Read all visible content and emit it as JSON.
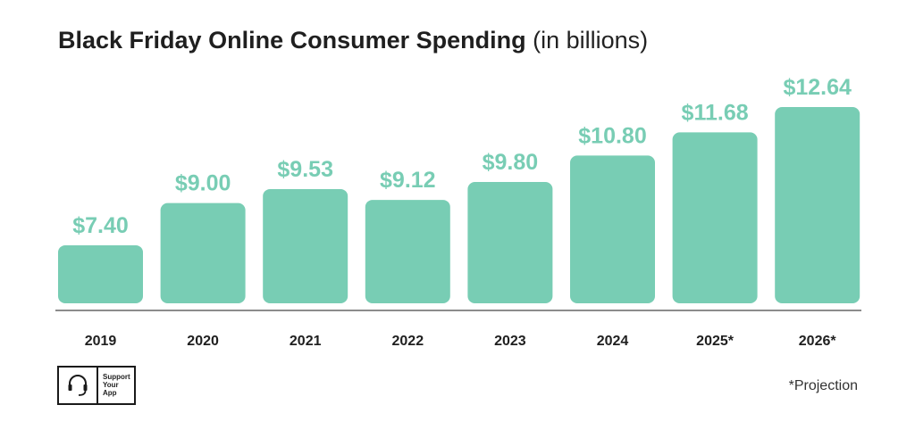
{
  "title": {
    "main": "Black Friday Online Consumer Spending",
    "sub": "(in billions)"
  },
  "note": "*Projection",
  "logo": {
    "line1": "Support",
    "line2": "Your",
    "line3": "App"
  },
  "colors": {
    "bar": "#78cdb4",
    "label": "#78cdb4",
    "axis": "#666666",
    "text": "#1f1f1f"
  },
  "chart_data": {
    "type": "bar",
    "title": "Black Friday Online Consumer Spending (in billions)",
    "categories": [
      "2019",
      "2020",
      "2021",
      "2022",
      "2023",
      "2024",
      "2025*",
      "2026*"
    ],
    "values": [
      7.4,
      9.0,
      9.53,
      9.12,
      9.8,
      10.8,
      11.68,
      12.64
    ],
    "labels": [
      "$7.40",
      "$9.00",
      "$9.53",
      "$9.12",
      "$9.80",
      "$10.80",
      "$11.68",
      "$12.64"
    ],
    "xlabel": "",
    "ylabel": "",
    "ylim": [
      5.2,
      12.64
    ],
    "grid": false,
    "legend": "none"
  }
}
